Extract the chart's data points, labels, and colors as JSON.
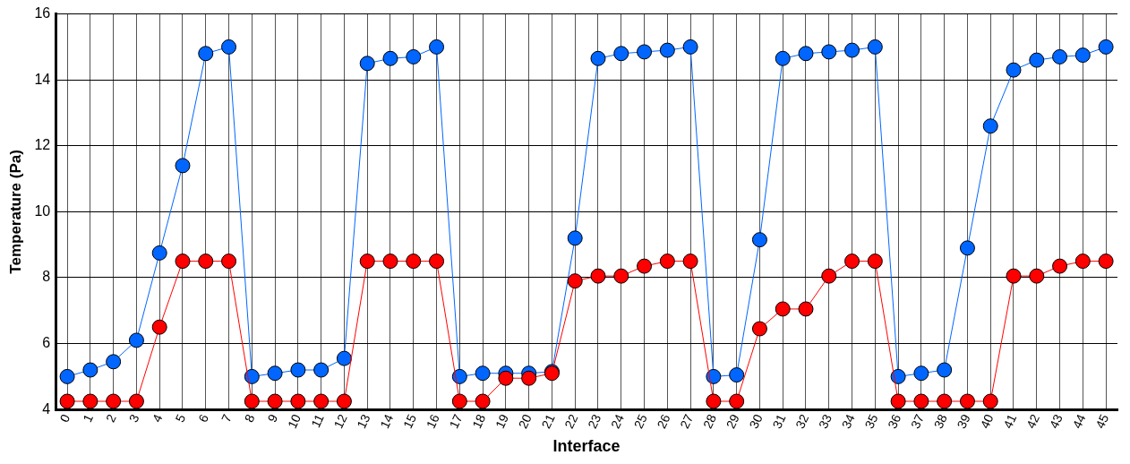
{
  "chart_data": {
    "type": "line",
    "xlabel": "Interface",
    "ylabel": "Temperature (Pa)",
    "categories": [
      "0",
      "1",
      "2",
      "3",
      "4",
      "5",
      "6",
      "7",
      "8",
      "9",
      "10",
      "11",
      "12",
      "13",
      "14",
      "15",
      "16",
      "17",
      "18",
      "19",
      "20",
      "21",
      "22",
      "23",
      "24",
      "25",
      "26",
      "27",
      "28",
      "29",
      "30",
      "31",
      "32",
      "33",
      "34",
      "35",
      "36",
      "37",
      "38",
      "39",
      "40",
      "41",
      "42",
      "43",
      "44",
      "45"
    ],
    "series": [
      {
        "color": "#0066ff",
        "values": [
          5.0,
          5.2,
          5.45,
          6.1,
          8.75,
          11.4,
          14.8,
          15.0,
          5.0,
          5.1,
          5.2,
          5.2,
          5.55,
          14.5,
          14.65,
          14.7,
          15.0,
          5.0,
          5.1,
          5.1,
          5.1,
          5.15,
          9.2,
          14.65,
          14.8,
          14.85,
          14.9,
          15.0,
          5.0,
          5.05,
          9.15,
          14.65,
          14.8,
          14.85,
          14.9,
          15.0,
          5.0,
          5.1,
          5.2,
          8.9,
          12.6,
          14.3,
          14.6,
          14.7,
          14.75,
          15.0
        ]
      },
      {
        "color": "#ff0000",
        "values": [
          4.25,
          4.25,
          4.25,
          4.25,
          6.5,
          8.5,
          8.5,
          8.5,
          4.25,
          4.25,
          4.25,
          4.25,
          4.25,
          8.5,
          8.5,
          8.5,
          8.5,
          4.25,
          4.25,
          4.95,
          4.95,
          5.1,
          7.9,
          8.05,
          8.05,
          8.35,
          8.5,
          8.5,
          4.25,
          4.25,
          6.45,
          7.05,
          7.05,
          8.05,
          8.5,
          8.5,
          4.25,
          4.25,
          4.25,
          4.25,
          4.25,
          8.05,
          8.05,
          8.35,
          8.5,
          8.5
        ]
      }
    ],
    "ylim": [
      4,
      16
    ],
    "yticks": [
      4,
      6,
      8,
      10,
      12,
      14,
      16
    ],
    "grid": true,
    "legend": false,
    "marker": "circle",
    "line_style": "solid"
  }
}
